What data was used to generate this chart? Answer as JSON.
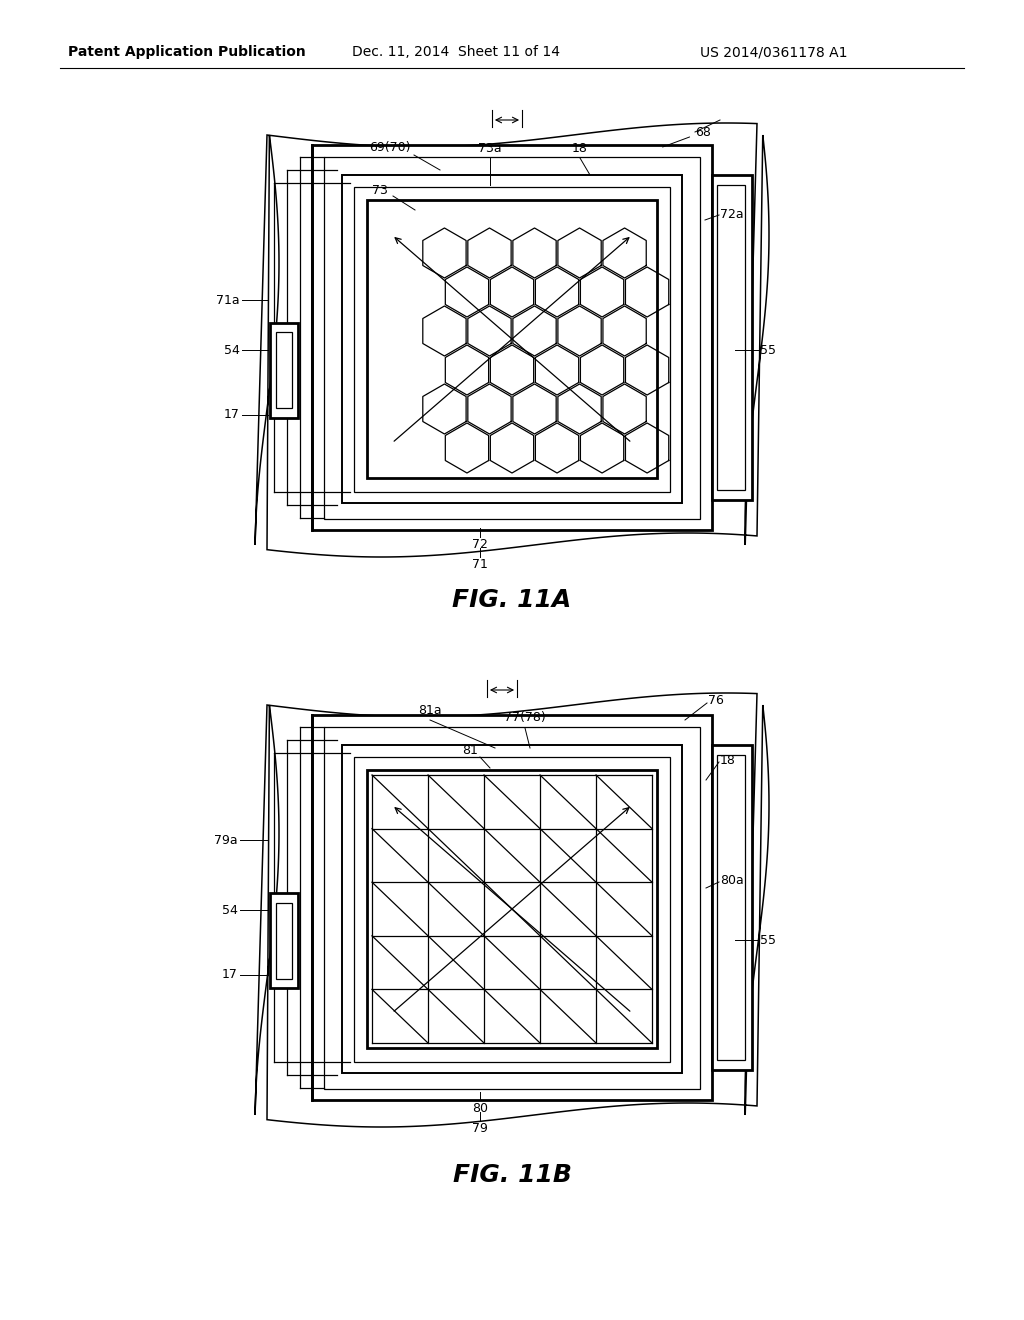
{
  "bg_color": "#ffffff",
  "line_color": "#000000",
  "header_text": "Patent Application Publication",
  "header_date": "Dec. 11, 2014  Sheet 11 of 14",
  "header_patent": "US 2014/0361178 A1",
  "fig_label_A": "FIG. 11A",
  "fig_label_B": "FIG. 11B",
  "fig_fontsize": 18,
  "header_fontsize": 10,
  "label_fontsize": 9
}
